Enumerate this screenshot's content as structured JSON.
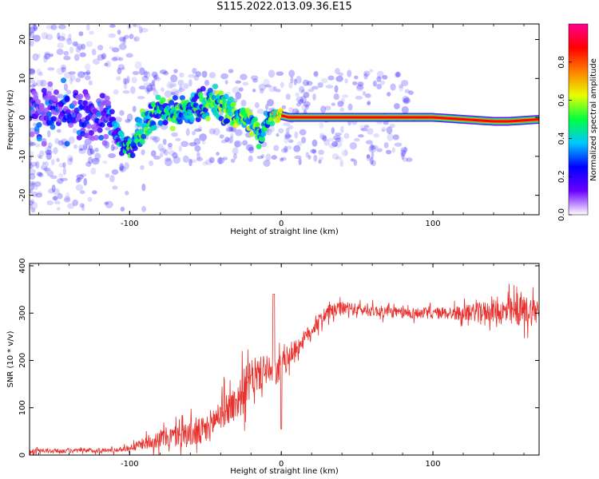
{
  "title": "S115.2022.013.09.36.E15",
  "colors": {
    "snr_line": "#e8302c",
    "axes": "#000000",
    "background": "#ffffff"
  },
  "chart_data": [
    {
      "type": "heatmap",
      "xlabel": "Height of straight line (km)",
      "ylabel": "Frequency (Hz)",
      "xlim": [
        -166,
        170
      ],
      "ylim": [
        -25,
        24
      ],
      "x_ticks": [
        -100,
        0,
        100
      ],
      "y_ticks": [
        -20,
        -10,
        0,
        10,
        20
      ],
      "colorbar": {
        "label": "Normalized spectral amplitude",
        "range": [
          0.0,
          1.0
        ],
        "ticks": [
          "0.0",
          "0.2",
          "0.4",
          "0.6",
          "0.8"
        ],
        "tick_values": [
          0.0,
          0.2,
          0.4,
          0.6,
          0.8
        ],
        "colormap": [
          "#ffffff",
          "#6a00ff",
          "#0000ff",
          "#00c8ff",
          "#00ff40",
          "#e8ff00",
          "#ff8000",
          "#ff0000",
          "#ff0090"
        ]
      },
      "ridge": [
        {
          "x": -166,
          "f": 1.5,
          "amp": 0.15,
          "spread": 3.0
        },
        {
          "x": -150,
          "f": 2.0,
          "amp": 0.15,
          "spread": 3.0
        },
        {
          "x": -130,
          "f": 0.0,
          "amp": 0.15,
          "spread": 3.0
        },
        {
          "x": -115,
          "f": 0.0,
          "amp": 0.15,
          "spread": 3.0
        },
        {
          "x": -104,
          "f": -7.0,
          "amp": 0.3,
          "spread": 2.0
        },
        {
          "x": -100,
          "f": -8.0,
          "amp": 0.35,
          "spread": 2.0
        },
        {
          "x": -95,
          "f": -4.0,
          "amp": 0.35,
          "spread": 2.0
        },
        {
          "x": -90,
          "f": -1.0,
          "amp": 0.4,
          "spread": 2.0
        },
        {
          "x": -80,
          "f": 2.0,
          "amp": 0.35,
          "spread": 2.0
        },
        {
          "x": -70,
          "f": 1.0,
          "amp": 0.4,
          "spread": 2.0
        },
        {
          "x": -60,
          "f": 2.0,
          "amp": 0.35,
          "spread": 2.0
        },
        {
          "x": -45,
          "f": 4.0,
          "amp": 0.4,
          "spread": 2.0
        },
        {
          "x": -35,
          "f": 2.0,
          "amp": 0.45,
          "spread": 2.0
        },
        {
          "x": -25,
          "f": 0.0,
          "amp": 0.45,
          "spread": 1.5
        },
        {
          "x": -18,
          "f": -2.0,
          "amp": 0.45,
          "spread": 1.5
        },
        {
          "x": -14,
          "f": -5.0,
          "amp": 0.35,
          "spread": 1.5
        },
        {
          "x": -10,
          "f": -1.0,
          "amp": 0.4,
          "spread": 1.0
        },
        {
          "x": -5,
          "f": 1.0,
          "amp": 0.5,
          "spread": 1.0
        },
        {
          "x": 5,
          "f": 0.0,
          "amp": 0.8,
          "spread": 0.8
        },
        {
          "x": 30,
          "f": 0.0,
          "amp": 0.85,
          "spread": 0.8
        },
        {
          "x": 60,
          "f": 0.0,
          "amp": 0.9,
          "spread": 0.8
        },
        {
          "x": 100,
          "f": 0.0,
          "amp": 0.9,
          "spread": 0.8
        },
        {
          "x": 140,
          "f": -1.0,
          "amp": 0.85,
          "spread": 0.8
        },
        {
          "x": 150,
          "f": -1.0,
          "amp": 0.8,
          "spread": 0.8
        },
        {
          "x": 170,
          "f": -0.5,
          "amp": 0.8,
          "spread": 0.8
        }
      ]
    },
    {
      "type": "line",
      "xlabel": "Height of straight line (km)",
      "ylabel": "SNR (10 * v/v)",
      "xlim": [
        -166,
        170
      ],
      "ylim": [
        0,
        405
      ],
      "x_ticks": [
        -100,
        0,
        100
      ],
      "y_ticks": [
        0,
        100,
        200,
        300,
        400
      ],
      "envelope": {
        "x": [
          -166,
          -110,
          -100,
          -90,
          -80,
          -70,
          -60,
          -50,
          -40,
          -30,
          -25,
          -20,
          -10,
          -5,
          0,
          5,
          10,
          20,
          30,
          40,
          60,
          80,
          100,
          120,
          140,
          150,
          160,
          170
        ],
        "base": [
          8,
          10,
          15,
          25,
          35,
          40,
          45,
          50,
          90,
          110,
          135,
          160,
          180,
          170,
          185,
          210,
          225,
          265,
          300,
          310,
          305,
          300,
          300,
          300,
          305,
          300,
          305,
          305
        ],
        "noise": [
          6,
          6,
          8,
          15,
          25,
          30,
          35,
          40,
          45,
          45,
          60,
          50,
          40,
          35,
          40,
          30,
          25,
          20,
          20,
          18,
          15,
          15,
          15,
          20,
          30,
          40,
          40,
          40
        ]
      }
    }
  ]
}
